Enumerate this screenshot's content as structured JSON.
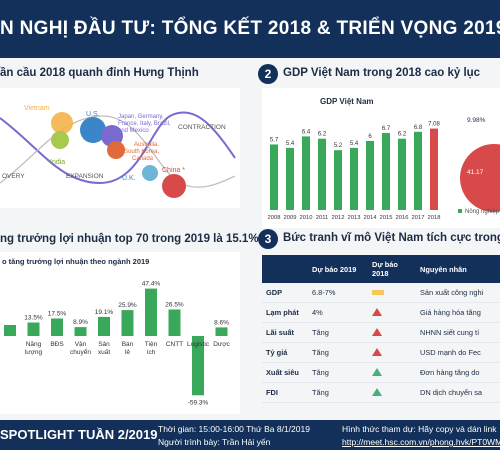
{
  "header": {
    "title": "N NGHỊ ĐẦU TƯ: TỔNG KẾT 2018 & TRIỂN VỌNG 2019"
  },
  "section1": {
    "title": "ần cầu 2018 quanh đỉnh Hưng Thịnh"
  },
  "section2": {
    "number": "2",
    "title": "GDP Việt Nam trong 2018 cao kỷ lục"
  },
  "section3": {
    "title": "ng trưởng lợi nhuận top 70 trong 2019 là 15.1%"
  },
  "section4": {
    "number": "3",
    "title": "Bức tranh vĩ mô Việt Nam tích cực trong 20"
  },
  "cycle": {
    "countries": [
      "Vietnam",
      "India",
      "U.S.",
      "Japan, Germany, France, Italy, Brazil, and Mexico",
      "Australia, South Korea, Canada",
      "U.K.",
      "China *"
    ],
    "phases": [
      "OVERY",
      "EXPANSION",
      "CONTRACTION"
    ]
  },
  "gdp_chart": {
    "title": "GDP Việt Nam",
    "legend": "Nông nghiệp",
    "pie_labels": [
      "9.98%",
      "41.17"
    ]
  },
  "profit_chart": {
    "title": "o tăng trưởng lợi nhuận theo ngành 2019"
  },
  "macro": {
    "headers": [
      "",
      "Dự báo 2019",
      "Dự báo 2018",
      "Nguyên nhân"
    ],
    "rows": [
      {
        "label": "GDP",
        "f2019": "6.8-7%",
        "trend": "flat",
        "reason": "Sản xuất công nghi"
      },
      {
        "label": "Lạm phát",
        "f2019": "4%",
        "trend": "up-red",
        "reason": "Giá hàng hóa tăng"
      },
      {
        "label": "Lãi suất",
        "f2019": "Tăng",
        "trend": "up-red",
        "reason": "NHNN siết cung tí"
      },
      {
        "label": "Tỷ giá",
        "f2019": "Tăng",
        "trend": "up-red",
        "reason": "USD mạnh do Fec"
      },
      {
        "label": "Xuất siêu",
        "f2019": "Tăng",
        "trend": "up-green",
        "reason": "Đơn hàng tăng do"
      },
      {
        "label": "FDI",
        "f2019": "Tăng",
        "trend": "up-green",
        "reason": "DN dịch chuyển sa"
      }
    ]
  },
  "footer": {
    "spotlight": "SPOTLIGHT TUẦN 2/2019",
    "time": "Thời gian: 15:00-16:00  Thứ Ba 8/1/2019",
    "presenter": "Người trình bày: Trần Hải yến",
    "join": "Hình thức tham dự: Hãy copy và dán link",
    "link": "http://meet.hsc.com.vn/phong.hvk/PT0WM"
  },
  "chart_data": [
    {
      "type": "bar",
      "title": "GDP Việt Nam",
      "categories": [
        "2008",
        "2009",
        "2010",
        "2011",
        "2012",
        "2013",
        "2014",
        "2015",
        "2016",
        "2017",
        "2018"
      ],
      "values": [
        5.7,
        5.4,
        6.4,
        6.2,
        5.2,
        5.4,
        6.0,
        6.7,
        6.2,
        6.8,
        7.08
      ],
      "value_labels": [
        "5.7",
        "5.4",
        "6.4",
        "6.2",
        "5.2",
        "5.4",
        "6",
        "6.7",
        "6.2",
        "6.8",
        "7.08"
      ],
      "colors": [
        "#3aa85a",
        "#3aa85a",
        "#3aa85a",
        "#3aa85a",
        "#3aa85a",
        "#3aa85a",
        "#3aa85a",
        "#3aa85a",
        "#3aa85a",
        "#3aa85a",
        "#d84a4a"
      ]
    },
    {
      "type": "bar",
      "title": "o tăng trưởng lợi nhuận theo ngành 2019",
      "categories": [
        "",
        "Năng lượng",
        "BĐS",
        "Vận chuyển",
        "Sản xuất",
        "Bán lẻ",
        "Tiện ích",
        "CNTT",
        "Logistic",
        "Dược"
      ],
      "values": [
        11.0,
        13.5,
        17.5,
        8.9,
        19.1,
        25.9,
        47.4,
        26.5,
        -59.3,
        8.6
      ],
      "value_labels": [
        "",
        "13.5%",
        "17.5%",
        "8.9%",
        "19.1%",
        "25.9%",
        "47.4%",
        "26.5%",
        "-59.3%",
        "8.6%"
      ],
      "ylim": [
        -65,
        50
      ]
    }
  ]
}
